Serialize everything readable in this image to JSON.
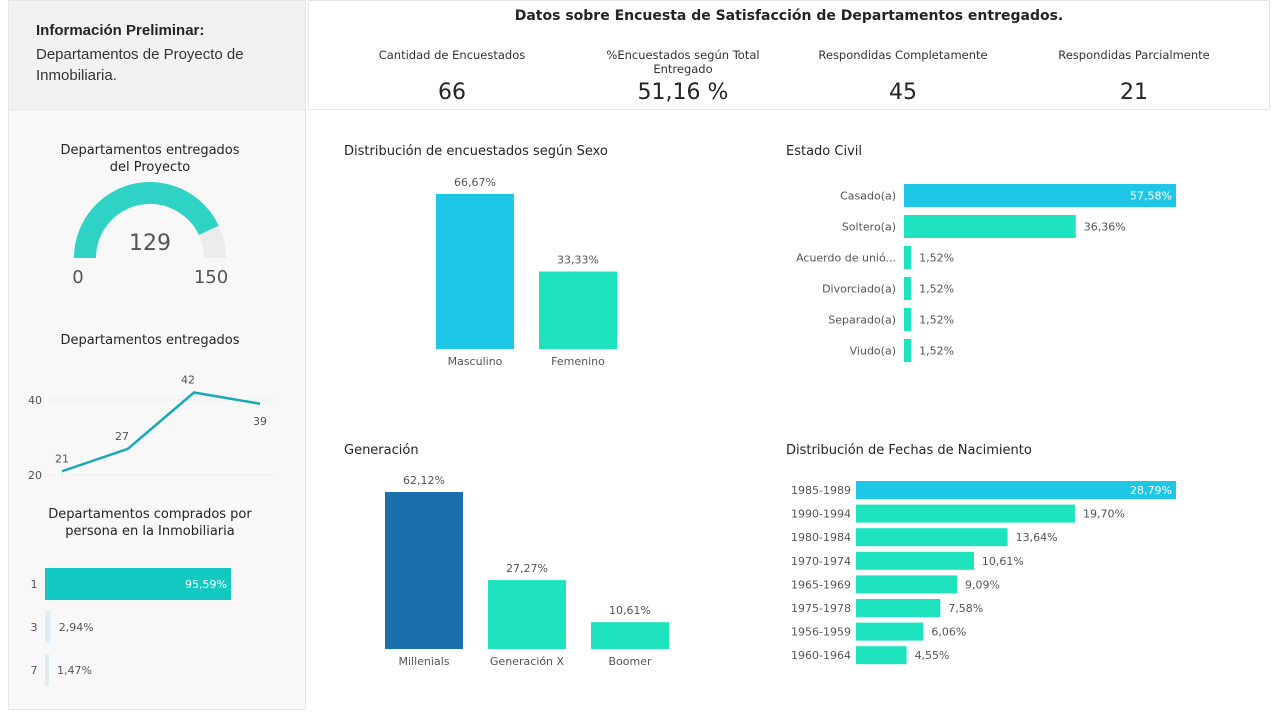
{
  "info": {
    "title": "Información Preliminar:",
    "subtitle": "Departamentos de Proyecto de Inmobiliaria."
  },
  "kpis": {
    "title": "Datos sobre Encuesta de Satisfacción de Departamentos entregados.",
    "items": [
      {
        "label": "Cantidad de Encuestados",
        "value": "66"
      },
      {
        "label": "%Encuestados según Total Entregado",
        "value": "51,16 %"
      },
      {
        "label": "Respondidas Completamente",
        "value": "45"
      },
      {
        "label": "Respondidas Parcialmente",
        "value": "21"
      }
    ]
  },
  "gauge": {
    "title": "Departamentos entregados del Proyecto",
    "value": 129,
    "value_label": "129",
    "min": 0,
    "min_label": "0",
    "max": 150,
    "max_label": "150",
    "color": "#2ed3c5",
    "track": "#ececec"
  },
  "colors": {
    "primary": "#1ec7e6",
    "secondary": "#1de3bf",
    "dark": "#1a70ad",
    "teal": "#12c9c2",
    "line": "#19a9b8",
    "light": "#dcecf9"
  },
  "chart_data": [
    {
      "type": "line",
      "title": "Departamentos entregados",
      "x": [
        1,
        2,
        3,
        4
      ],
      "values": [
        21,
        27,
        42,
        39
      ],
      "labels": [
        "21",
        "27",
        "42",
        "39"
      ],
      "yticks": [
        "40",
        "20"
      ],
      "ylim": [
        20,
        40
      ],
      "grid": true
    },
    {
      "type": "bar",
      "orientation": "horizontal",
      "title": "Departamentos comprados por persona en la Inmobiliaria",
      "categories": [
        "1",
        "3",
        "7"
      ],
      "values": [
        95.59,
        2.94,
        1.47
      ],
      "labels": [
        "95,59%",
        "2,94%",
        "1,47%"
      ]
    },
    {
      "type": "bar",
      "title": "Distribución de encuestados según Sexo",
      "categories": [
        "Masculino",
        "Femenino"
      ],
      "values": [
        66.67,
        33.33
      ],
      "labels": [
        "66,67%",
        "33,33%"
      ]
    },
    {
      "type": "bar",
      "orientation": "horizontal",
      "title": "Estado Civil",
      "categories": [
        "Casado(a)",
        "Soltero(a)",
        "Acuerdo de unió...",
        "Divorciado(a)",
        "Separado(a)",
        "Viudo(a)"
      ],
      "values": [
        57.58,
        36.36,
        1.52,
        1.52,
        1.52,
        1.52
      ],
      "labels": [
        "57,58%",
        "36,36%",
        "1,52%",
        "1,52%",
        "1,52%",
        "1,52%"
      ]
    },
    {
      "type": "bar",
      "title": "Generación",
      "categories": [
        "Millenials",
        "Generación X",
        "Boomer"
      ],
      "values": [
        62.12,
        27.27,
        10.61
      ],
      "labels": [
        "62,12%",
        "27,27%",
        "10,61%"
      ]
    },
    {
      "type": "bar",
      "orientation": "horizontal",
      "title": "Distribución de Fechas de Nacimiento",
      "categories": [
        "1985-1989",
        "1990-1994",
        "1980-1984",
        "1970-1974",
        "1965-1969",
        "1975-1978",
        "1956-1959",
        "1960-1964"
      ],
      "values": [
        28.79,
        19.7,
        13.64,
        10.61,
        9.09,
        7.58,
        6.06,
        4.55
      ],
      "labels": [
        "28,79%",
        "19,70%",
        "13,64%",
        "10,61%",
        "9,09%",
        "7,58%",
        "6,06%",
        "4,55%"
      ]
    }
  ]
}
